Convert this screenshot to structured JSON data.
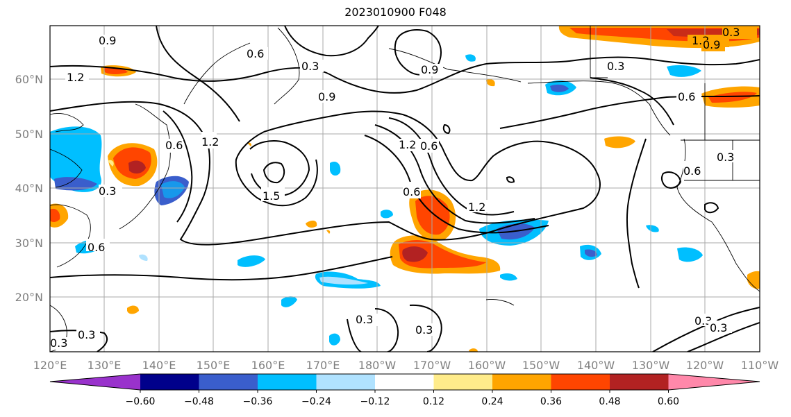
{
  "title": "2023010900 F048",
  "map": {
    "lon_labels": [
      "120°E",
      "130°E",
      "140°E",
      "150°E",
      "160°E",
      "170°E",
      "180°W",
      "170°W",
      "160°W",
      "150°W",
      "140°W",
      "130°W",
      "120°W",
      "110°W"
    ],
    "lat_labels": [
      "20°N",
      "30°N",
      "40°N",
      "50°N",
      "60°N"
    ],
    "contour_labels": [
      "0.9",
      "0.6",
      "1.2",
      "0.3",
      "0.6",
      "0.9",
      "1.2",
      "0.6",
      "1.2",
      "1.5",
      "0.3",
      "0.9",
      "0.6",
      "1.2",
      "0.6",
      "1.2",
      "0.3",
      "0.6",
      "0.3",
      "0.6",
      "0.3",
      "0.3",
      "0.3",
      "0.3",
      "0.3",
      "0.3",
      "0.3",
      "0.9"
    ]
  },
  "colorbar": {
    "ticks": [
      "−0.60",
      "−0.48",
      "−0.36",
      "−0.24",
      "−0.12",
      "0.12",
      "0.24",
      "0.36",
      "0.48",
      "0.60"
    ],
    "colors": [
      "#9932cc",
      "#00008b",
      "#3a5ecc",
      "#00bfff",
      "#b0e2ff",
      "#ffffff",
      "#ffec8b",
      "#ffa500",
      "#ff4500",
      "#b22222",
      "#ff88aa"
    ]
  }
}
